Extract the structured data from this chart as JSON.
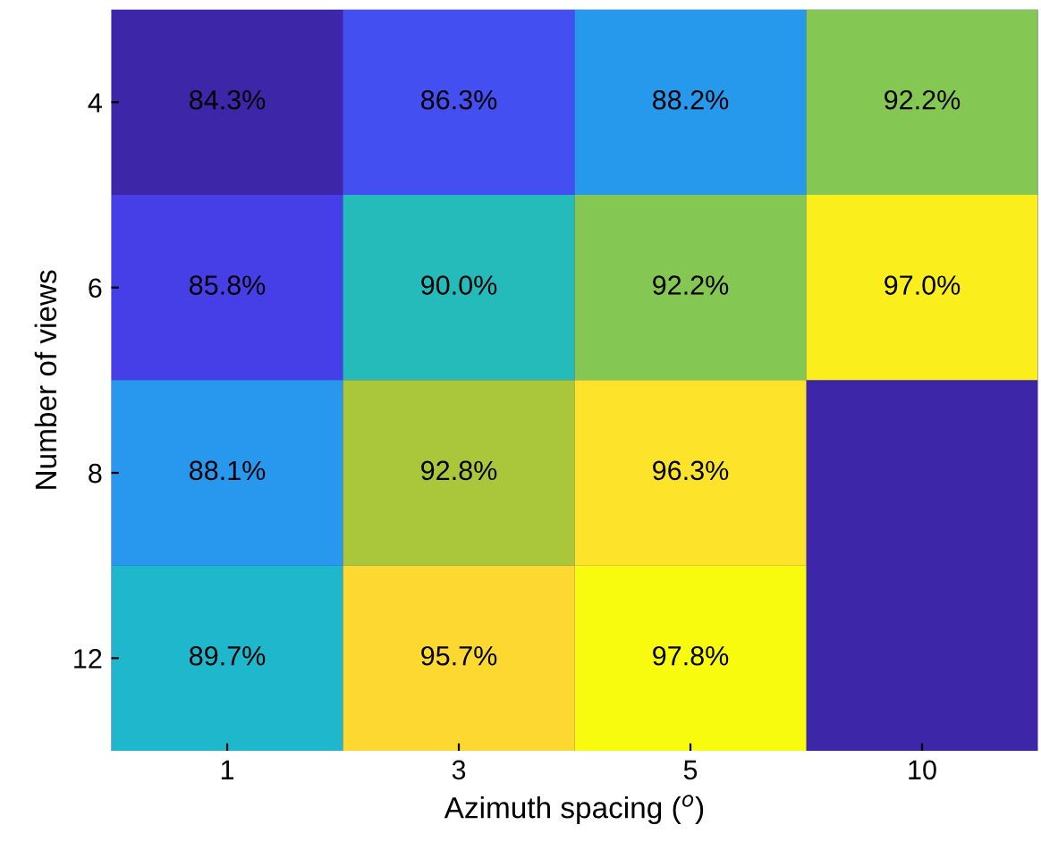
{
  "chart_data": {
    "type": "heatmap",
    "xlabel": "Azimuth spacing ($^{o}$)",
    "ylabel": "Number of views",
    "categories": [
      "1",
      "3",
      "5",
      "10"
    ],
    "y_categories": [
      "4",
      "6",
      "8",
      "12"
    ],
    "cells": [
      [
        84.3,
        86.3,
        88.2,
        92.2
      ],
      [
        85.8,
        90.0,
        92.2,
        97.0
      ],
      [
        88.1,
        92.8,
        96.3,
        null
      ],
      [
        89.7,
        95.7,
        97.8,
        null
      ]
    ],
    "cell_labels": [
      [
        "84.3%",
        "86.3%",
        "88.2%",
        "92.2%"
      ],
      [
        "85.8%",
        "90.0%",
        "92.2%",
        "97.0%"
      ],
      [
        "88.1%",
        "92.8%",
        "96.3%",
        null
      ],
      [
        "89.7%",
        "95.7%",
        "97.8%",
        null
      ]
    ]
  }
}
